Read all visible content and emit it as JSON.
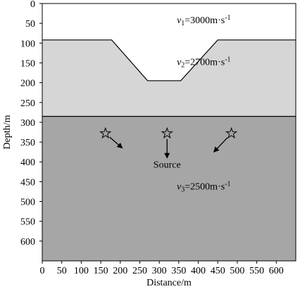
{
  "chart_data": {
    "type": "diagram",
    "xlabel": "Distance/m",
    "ylabel": "Depth/m",
    "xlim": [
      0,
      650
    ],
    "ylim": [
      0,
      650
    ],
    "x_ticks": [
      "0",
      "50",
      "100",
      "150",
      "200",
      "250",
      "300",
      "350",
      "400",
      "450",
      "500",
      "550",
      "600"
    ],
    "y_ticks": [
      "0",
      "50",
      "100",
      "150",
      "200",
      "250",
      "300",
      "350",
      "400",
      "450",
      "500",
      "550",
      "600"
    ],
    "layers": [
      {
        "v_symbol": "v",
        "v_sub": "1",
        "v_value": "=3000m·s",
        "v_exp": "-1",
        "fill": "#ffffff",
        "label_at": [
          345,
          50
        ]
      },
      {
        "v_symbol": "v",
        "v_sub": "2",
        "v_value": "=2700m·s",
        "v_exp": "-1",
        "fill": "#d6d6d6",
        "label_at": [
          345,
          155
        ],
        "top_boundary": [
          [
            0,
            92
          ],
          [
            178,
            92
          ],
          [
            270,
            195
          ],
          [
            355,
            195
          ],
          [
            450,
            92
          ],
          [
            650,
            92
          ]
        ],
        "bottom_depth": 285
      },
      {
        "v_symbol": "v",
        "v_sub": "3",
        "v_value": "=2500m·s",
        "v_exp": "-1",
        "fill": "#a6a6a6",
        "label_at": [
          345,
          470
        ],
        "top_depth": 285
      }
    ],
    "sources": [
      {
        "x": 162,
        "y": 328,
        "arrow_to": [
          205,
          365
        ]
      },
      {
        "x": 320,
        "y": 328,
        "arrow_to": [
          320,
          390
        ]
      },
      {
        "x": 485,
        "y": 328,
        "arrow_to": [
          440,
          375
        ]
      }
    ],
    "source_label": "Source",
    "source_label_at": [
      320,
      415
    ]
  }
}
